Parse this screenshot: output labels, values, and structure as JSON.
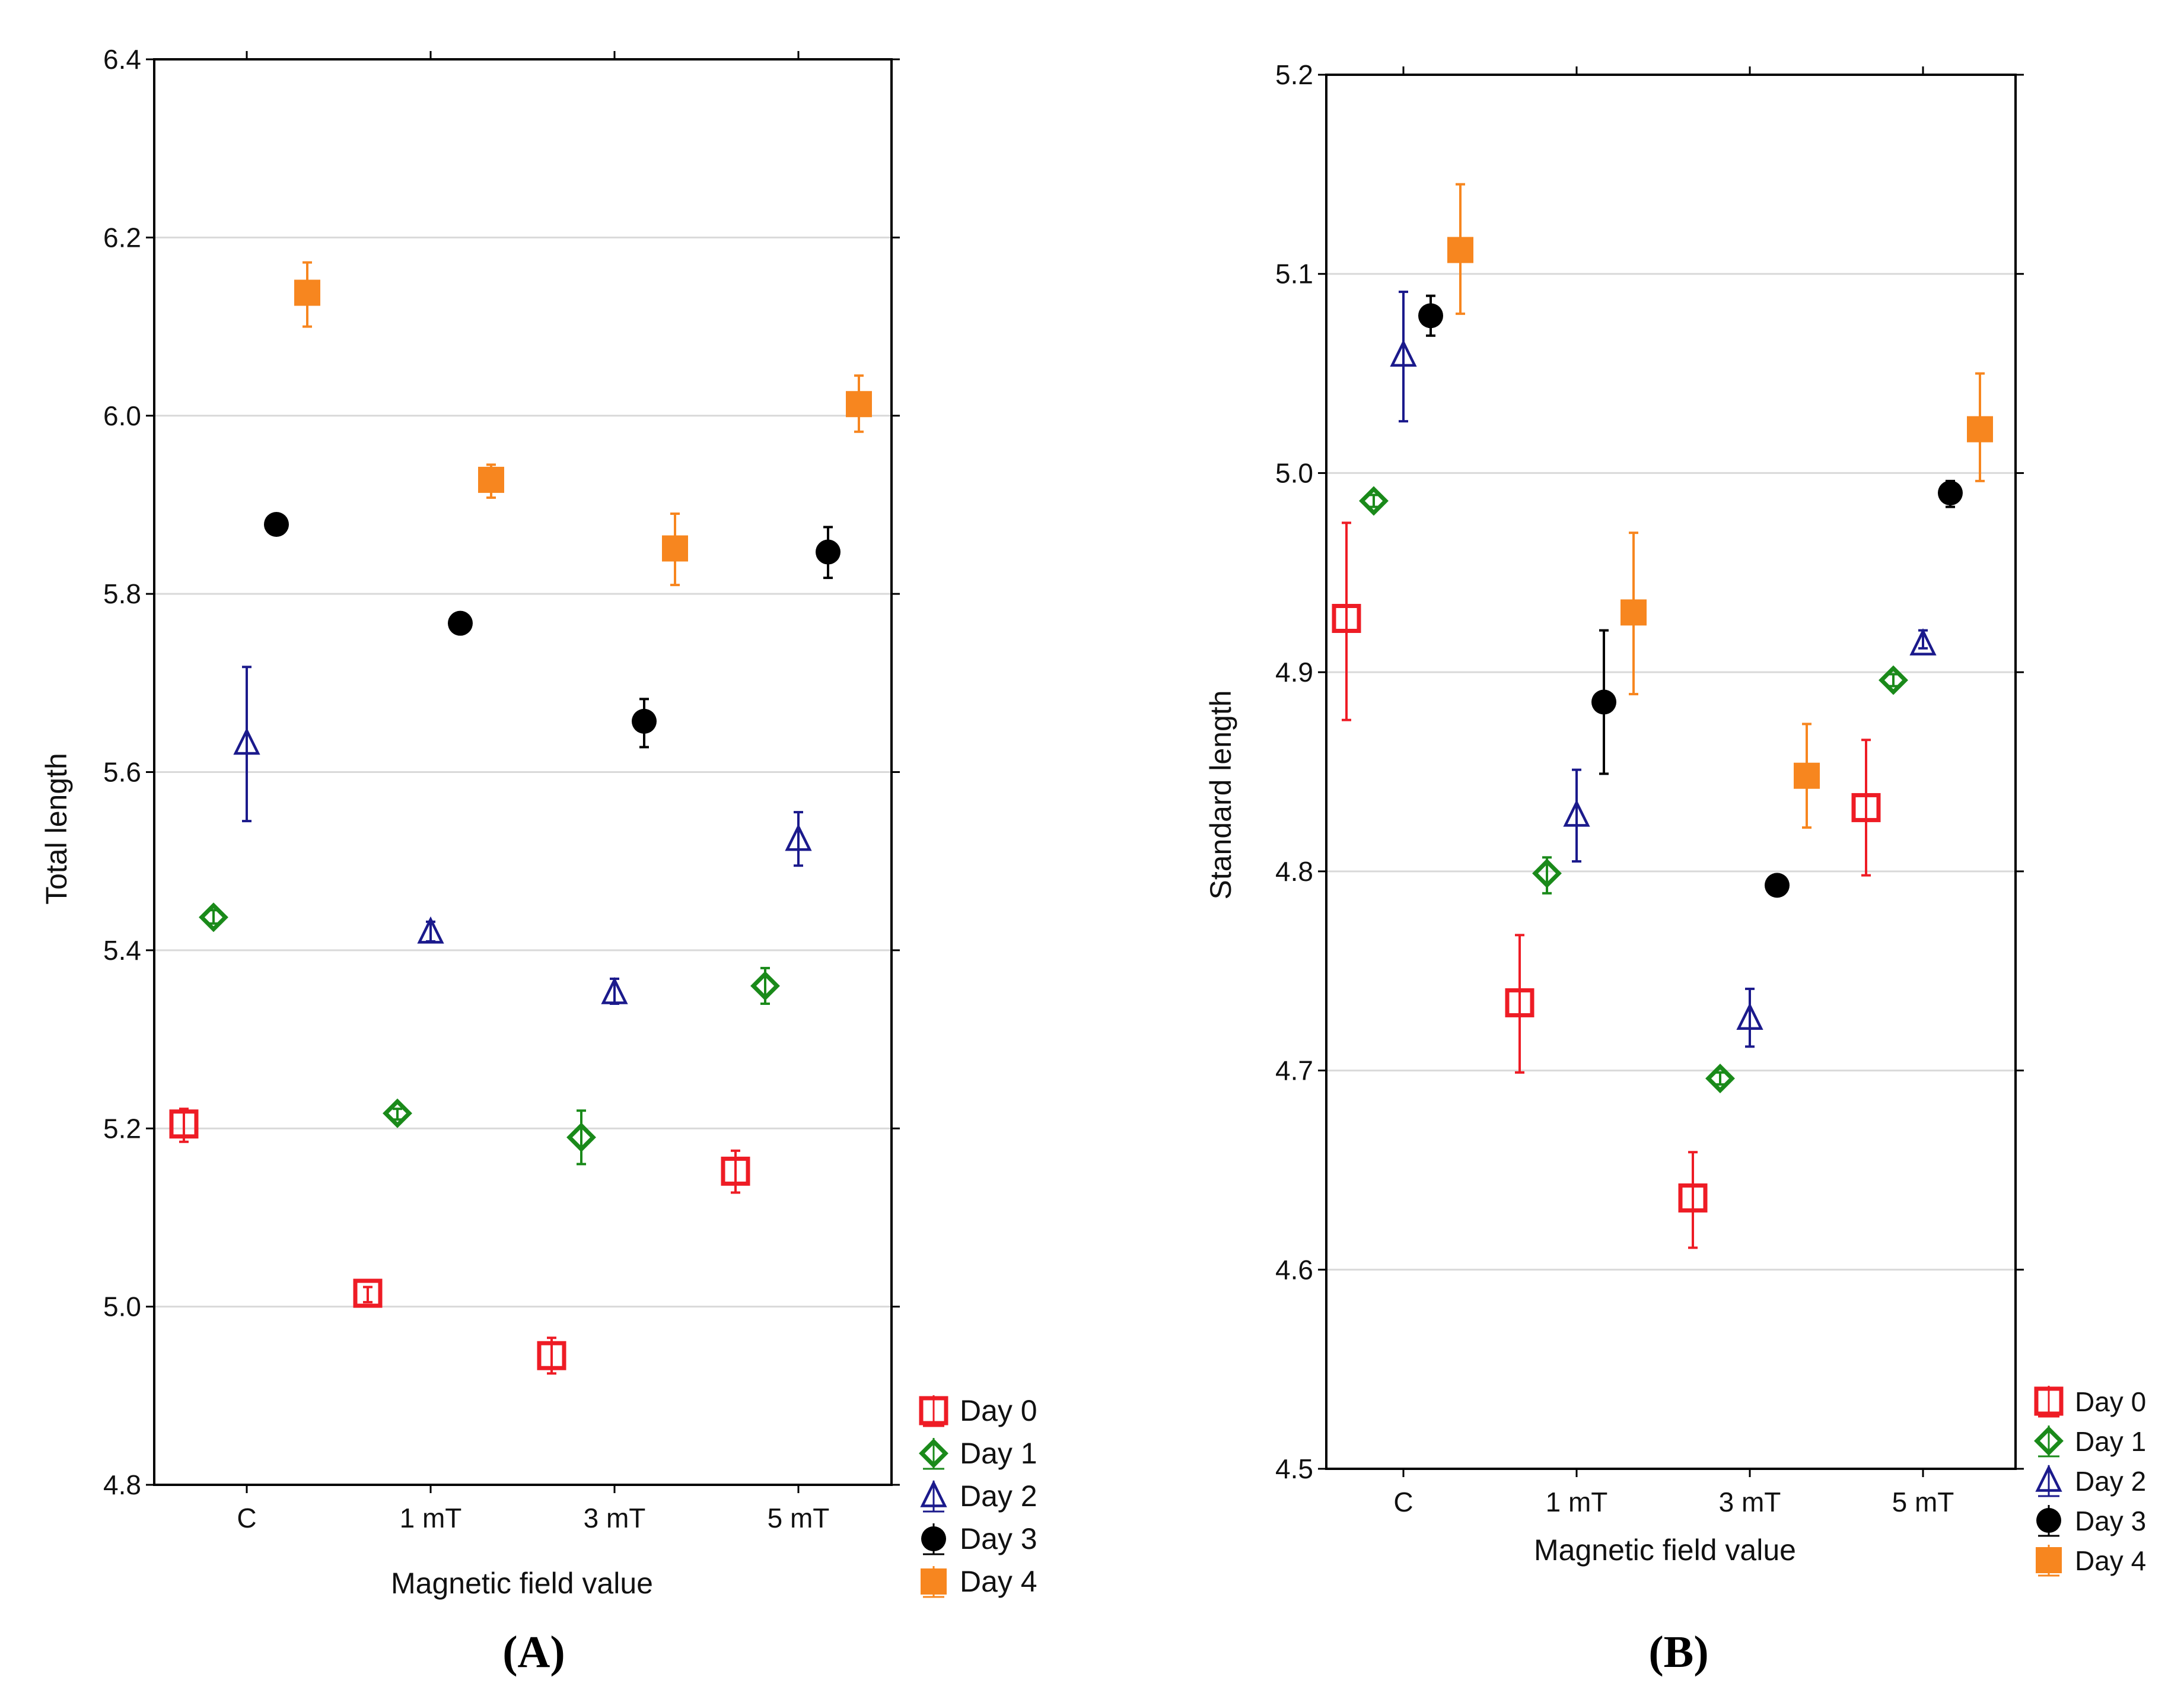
{
  "colors": {
    "day0": "#ee1c25",
    "day1": "#1a8a1a",
    "day2": "#1b1a8c",
    "day3": "#000000",
    "day4": "#f7861f",
    "grid": "#d9d9d9",
    "axis": "#000000"
  },
  "chart_data": [
    {
      "type": "scatter",
      "panel_label": "(A)",
      "xlabel": "Magnetic field value",
      "ylabel": "Total length",
      "categories": [
        "C",
        "1 mT",
        "3 mT",
        "5 mT"
      ],
      "ylim": [
        4.8,
        6.4
      ],
      "yticks": [
        "4.8",
        "5.0",
        "5.2",
        "5.4",
        "5.6",
        "5.8",
        "6.0",
        "6.2",
        "6.4"
      ],
      "grid": true,
      "legend_position": "outside-bottom-right",
      "error_bars": "mean ± error",
      "series": [
        {
          "name": "Day 0",
          "marker": "square-open",
          "color_key": "day0",
          "values": [
            5.205,
            5.015,
            4.945,
            5.152
          ],
          "lower": [
            5.185,
            5.005,
            4.925,
            5.128
          ],
          "upper": [
            5.222,
            5.022,
            4.965,
            5.175
          ]
        },
        {
          "name": "Day 1",
          "marker": "diamond-open",
          "color_key": "day1",
          "values": [
            5.437,
            5.217,
            5.19,
            5.36
          ],
          "lower": [
            5.43,
            5.21,
            5.16,
            5.34
          ],
          "upper": [
            5.445,
            5.222,
            5.22,
            5.38
          ]
        },
        {
          "name": "Day 2",
          "marker": "triangle-open",
          "color_key": "day2",
          "values": [
            5.632,
            5.42,
            5.352,
            5.524
          ],
          "lower": [
            5.545,
            5.41,
            5.34,
            5.495
          ],
          "upper": [
            5.718,
            5.432,
            5.368,
            5.555
          ]
        },
        {
          "name": "Day 3",
          "marker": "circle-filled",
          "color_key": "day3",
          "values": [
            5.878,
            5.767,
            5.657,
            5.847
          ],
          "lower": [
            5.875,
            5.762,
            5.628,
            5.818
          ],
          "upper": [
            5.882,
            5.772,
            5.682,
            5.875
          ]
        },
        {
          "name": "Day 4",
          "marker": "square-filled",
          "color_key": "day4",
          "values": [
            6.138,
            5.928,
            5.851,
            6.013
          ],
          "lower": [
            6.1,
            5.908,
            5.81,
            5.982
          ],
          "upper": [
            6.172,
            5.945,
            5.89,
            6.045
          ]
        }
      ]
    },
    {
      "type": "scatter",
      "panel_label": "(B)",
      "xlabel": "Magnetic field value",
      "ylabel": "Standard length",
      "categories": [
        "C",
        "1 mT",
        "3 mT",
        "5 mT"
      ],
      "ylim": [
        4.5,
        5.2
      ],
      "yticks": [
        "4.5",
        "4.6",
        "4.7",
        "4.8",
        "4.9",
        "5.0",
        "5.1",
        "5.2"
      ],
      "grid": true,
      "legend_position": "outside-bottom-right",
      "error_bars": "mean ± error",
      "series": [
        {
          "name": "Day 0",
          "marker": "square-open",
          "color_key": "day0",
          "values": [
            4.927,
            4.734,
            4.636,
            4.832
          ],
          "lower": [
            4.876,
            4.699,
            4.611,
            4.798
          ],
          "upper": [
            4.975,
            4.768,
            4.659,
            4.866
          ]
        },
        {
          "name": "Day 1",
          "marker": "diamond-open",
          "color_key": "day1",
          "values": [
            4.986,
            4.799,
            4.696,
            4.896
          ],
          "lower": [
            4.983,
            4.789,
            4.693,
            4.893
          ],
          "upper": [
            4.989,
            4.807,
            4.699,
            4.899
          ]
        },
        {
          "name": "Day 2",
          "marker": "triangle-open",
          "color_key": "day2",
          "values": [
            5.059,
            4.828,
            4.726,
            4.914
          ],
          "lower": [
            5.026,
            4.805,
            4.712,
            4.912
          ],
          "upper": [
            5.091,
            4.851,
            4.741,
            4.921
          ]
        },
        {
          "name": "Day 3",
          "marker": "circle-filled",
          "color_key": "day3",
          "values": [
            5.079,
            4.885,
            4.793,
            4.99
          ],
          "lower": [
            5.069,
            4.849,
            4.791,
            4.983
          ],
          "upper": [
            5.089,
            4.921,
            4.796,
            4.996
          ]
        },
        {
          "name": "Day 4",
          "marker": "square-filled",
          "color_key": "day4",
          "values": [
            5.112,
            4.93,
            4.848,
            5.022
          ],
          "lower": [
            5.08,
            4.889,
            4.822,
            4.996
          ],
          "upper": [
            5.145,
            4.97,
            4.874,
            5.05
          ]
        }
      ]
    }
  ]
}
